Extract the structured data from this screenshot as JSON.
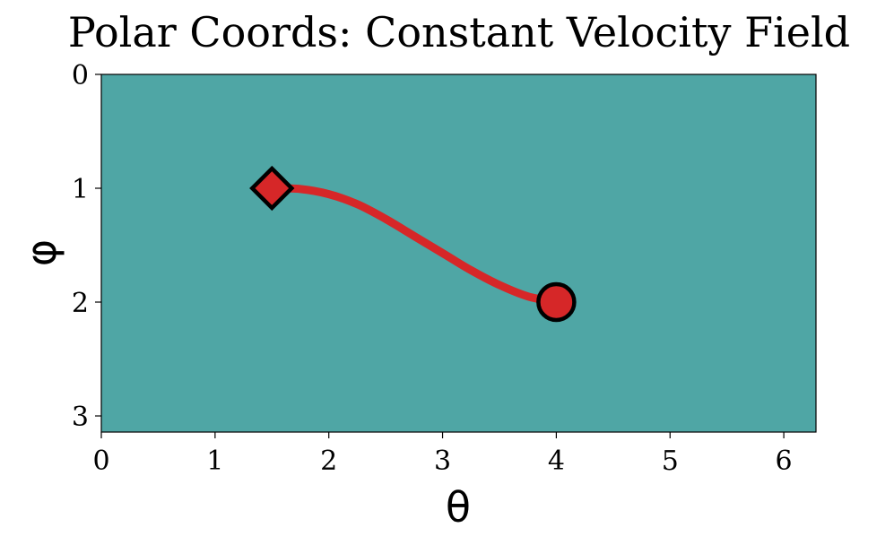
{
  "chart_data": {
    "type": "line",
    "title": "Polar Coords: Constant Velocity Field",
    "xlabel": "θ",
    "ylabel": "φ",
    "xlim": [
      0,
      6.283
    ],
    "ylim": [
      3.1416,
      0
    ],
    "y_inverted": true,
    "grid": false,
    "x_ticks": [
      0,
      1,
      2,
      3,
      4,
      5,
      6
    ],
    "y_ticks": [
      0,
      1,
      2,
      3
    ],
    "x_tick_labels": [
      "0",
      "1",
      "2",
      "3",
      "4",
      "5",
      "6"
    ],
    "y_tick_labels": [
      "0",
      "1",
      "2",
      "3"
    ],
    "background_color": "#4fa6a5",
    "series": [
      {
        "color": "#d62728",
        "x": [
          1.5,
          1.75,
          2.0,
          2.25,
          2.5,
          2.75,
          3.0,
          3.25,
          3.5,
          3.75,
          4.0
        ],
        "y": [
          1.0,
          1.007,
          1.052,
          1.14,
          1.27,
          1.42,
          1.57,
          1.72,
          1.85,
          1.95,
          2.0
        ]
      }
    ],
    "markers": [
      {
        "role": "start",
        "shape": "diamond",
        "x": 1.5,
        "y": 1.0,
        "fill": "#d62728",
        "edge": "#000000"
      },
      {
        "role": "end",
        "shape": "circle",
        "x": 4.0,
        "y": 2.0,
        "fill": "#d62728",
        "edge": "#000000"
      }
    ]
  }
}
